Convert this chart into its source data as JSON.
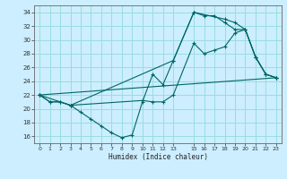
{
  "xlabel": "Humidex (Indice chaleur)",
  "bg_color": "#cceeff",
  "grid_color": "#99dddd",
  "line_color": "#006666",
  "xlim": [
    -0.5,
    23.5
  ],
  "ylim": [
    15.0,
    35.0
  ],
  "xticks": [
    0,
    1,
    2,
    3,
    4,
    5,
    6,
    7,
    8,
    9,
    10,
    11,
    12,
    13,
    15,
    16,
    17,
    18,
    19,
    20,
    21,
    22,
    23
  ],
  "yticks": [
    16,
    18,
    20,
    22,
    24,
    26,
    28,
    30,
    32,
    34
  ],
  "series": [
    [
      [
        0,
        22
      ],
      [
        1,
        21
      ],
      [
        2,
        21
      ],
      [
        3,
        20.5
      ],
      [
        4,
        19.5
      ],
      [
        5,
        18.5
      ],
      [
        6,
        17.5
      ],
      [
        7,
        16.5
      ],
      [
        8,
        15.8
      ],
      [
        9,
        16.2
      ],
      [
        10,
        21
      ],
      [
        11,
        25
      ],
      [
        12,
        23.5
      ],
      [
        13,
        27
      ],
      [
        15,
        34
      ],
      [
        16,
        33.5
      ],
      [
        17,
        33.5
      ],
      [
        18,
        32.5
      ],
      [
        19,
        31.5
      ],
      [
        20,
        31.5
      ],
      [
        21,
        27.5
      ],
      [
        22,
        25
      ],
      [
        23,
        24.5
      ]
    ],
    [
      [
        0,
        22
      ],
      [
        1,
        21
      ],
      [
        2,
        21
      ],
      [
        3,
        20.5
      ],
      [
        10,
        21.2
      ],
      [
        11,
        21
      ],
      [
        12,
        21
      ],
      [
        13,
        22
      ],
      [
        15,
        29.5
      ],
      [
        16,
        28
      ],
      [
        17,
        28.5
      ],
      [
        18,
        29
      ],
      [
        19,
        31
      ],
      [
        20,
        31.5
      ],
      [
        21,
        27.5
      ],
      [
        22,
        25
      ],
      [
        23,
        24.5
      ]
    ],
    [
      [
        0,
        22
      ],
      [
        3,
        20.5
      ],
      [
        13,
        27
      ],
      [
        15,
        34
      ],
      [
        18,
        33
      ],
      [
        19,
        32.5
      ],
      [
        20,
        31.5
      ],
      [
        21,
        27.5
      ],
      [
        22,
        25
      ],
      [
        23,
        24.5
      ]
    ],
    [
      [
        0,
        22
      ],
      [
        23,
        24.5
      ]
    ]
  ]
}
